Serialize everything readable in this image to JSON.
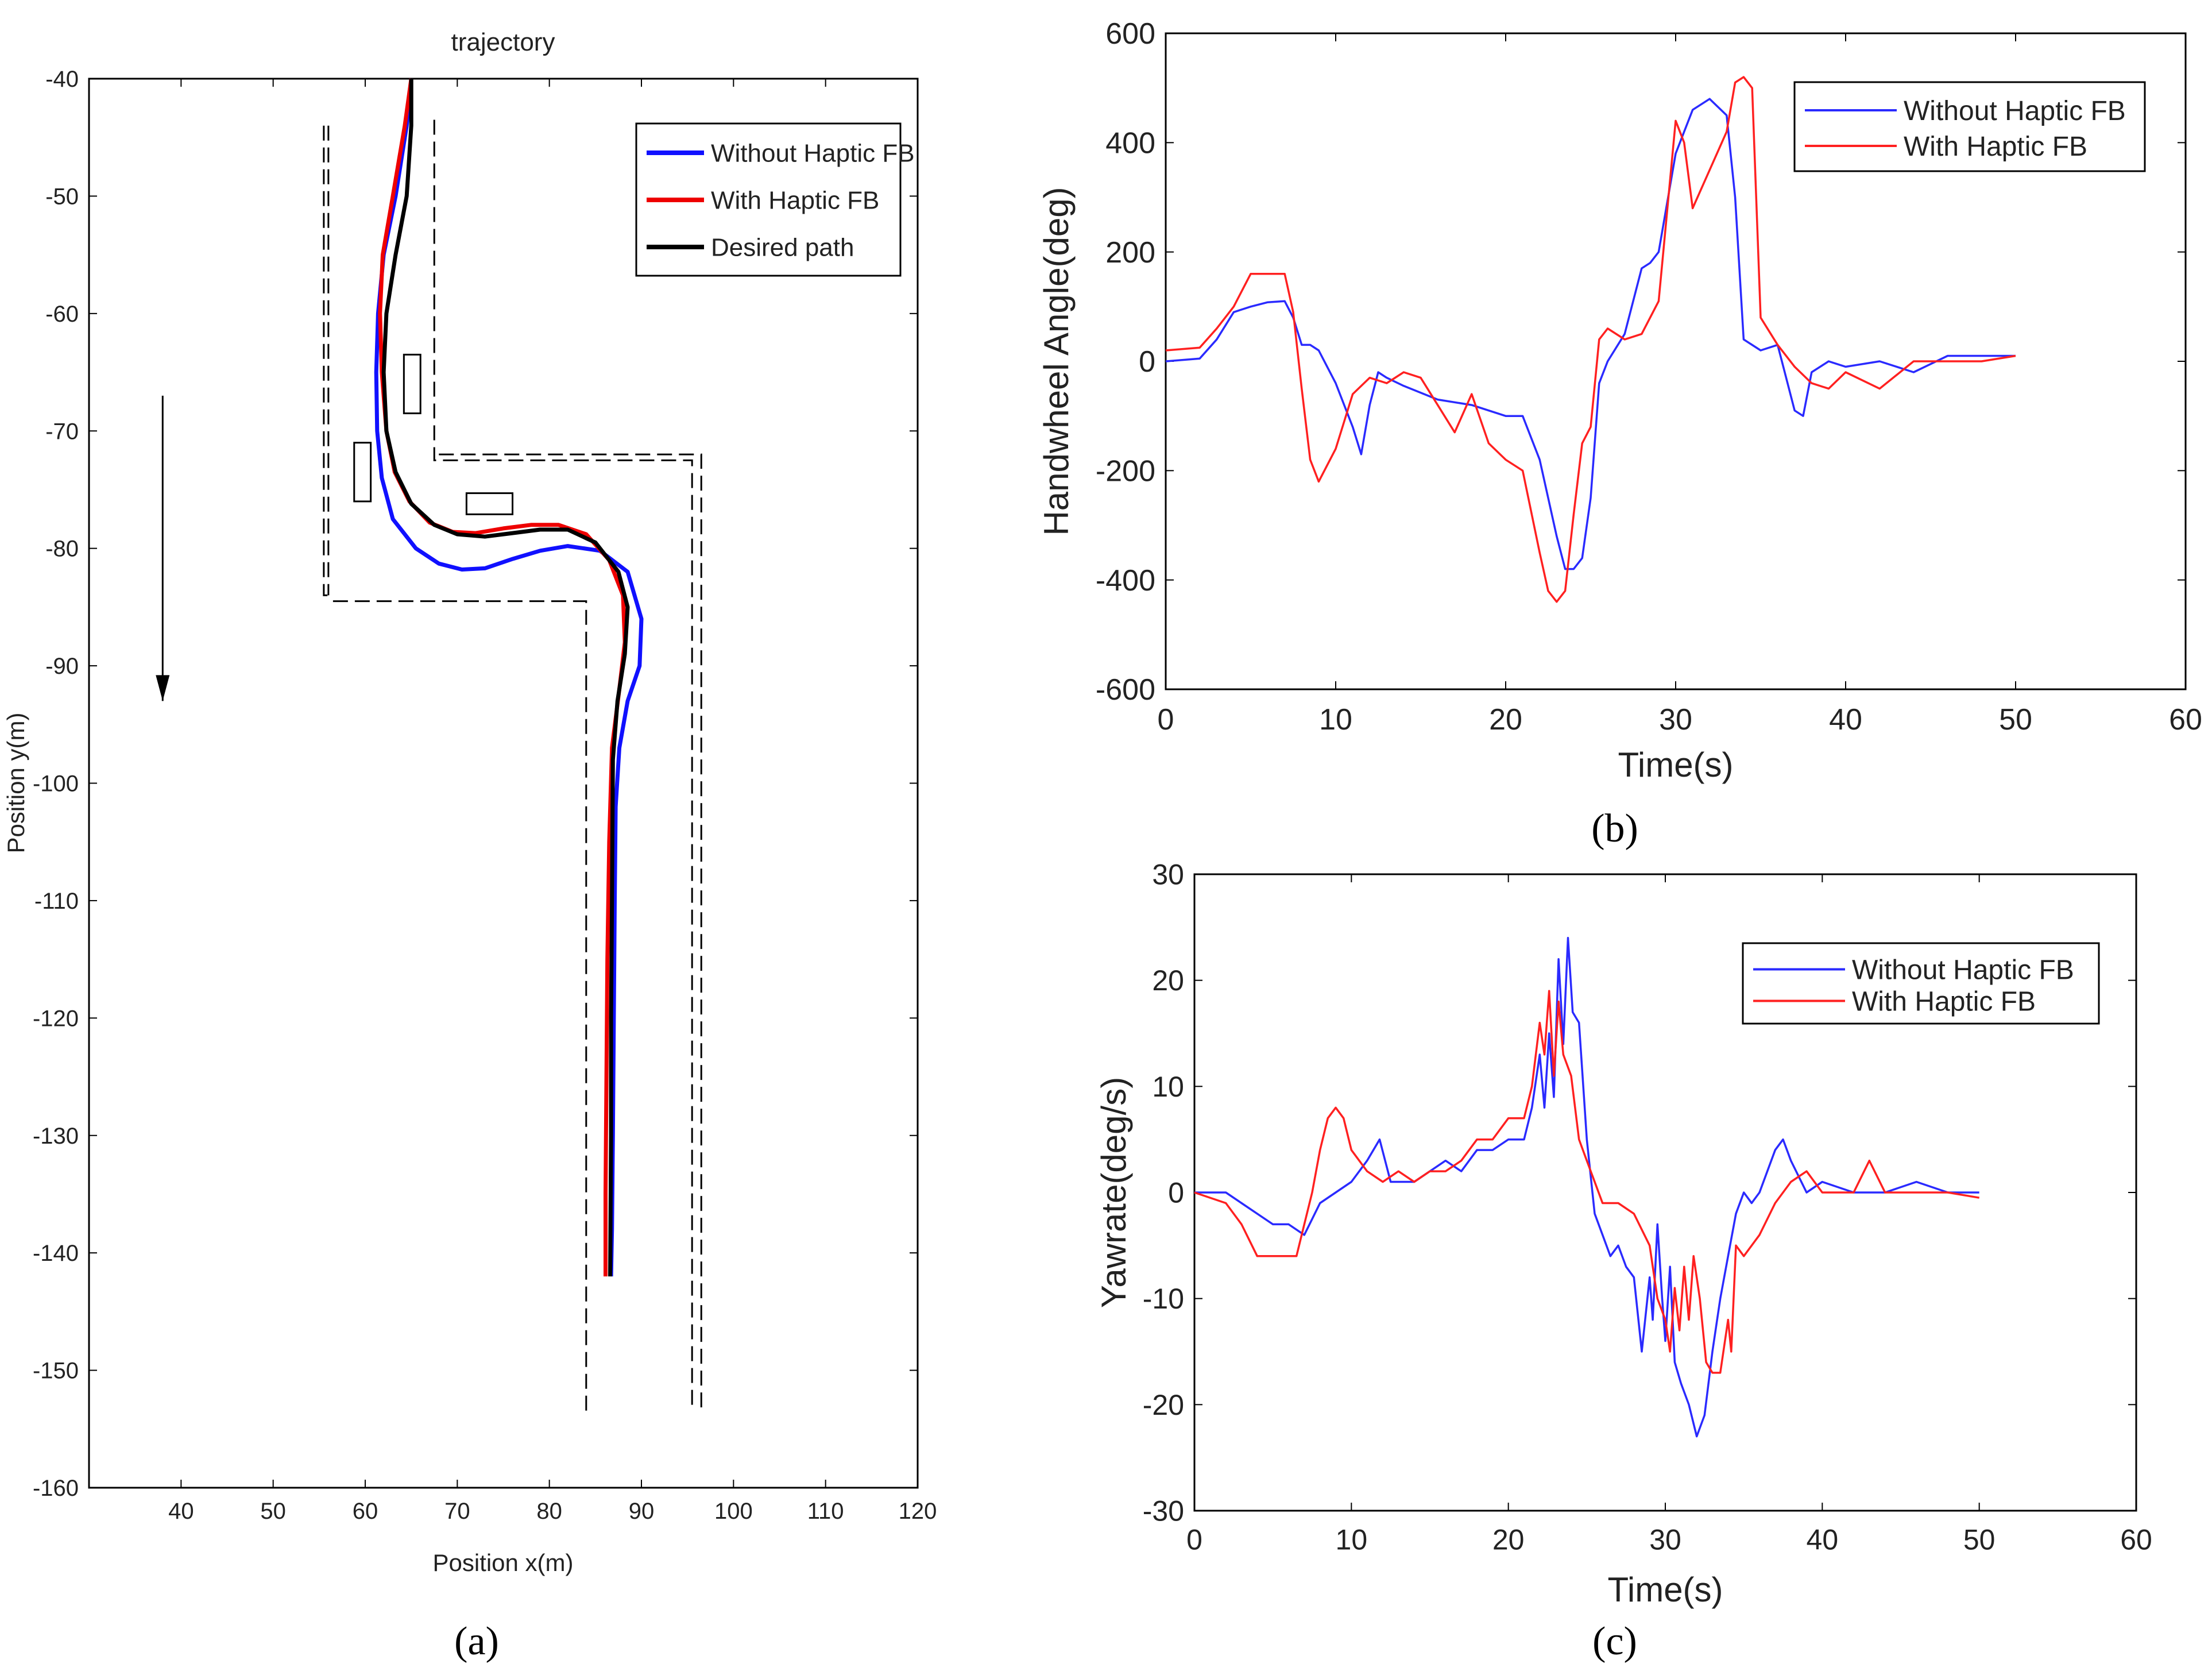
{
  "captions": {
    "a": "(a)",
    "b": "(b)",
    "c": "(c)"
  },
  "chart_data": [
    {
      "id": "a",
      "type": "line",
      "title": "trajectory",
      "xlabel": "Position x(m)",
      "ylabel": "Position y(m)",
      "xlim": [
        30,
        120
      ],
      "ylim": [
        -160,
        -40
      ],
      "xticks": [
        40,
        50,
        60,
        70,
        80,
        90,
        100,
        110,
        120
      ],
      "yticks": [
        -40,
        -50,
        -60,
        -70,
        -80,
        -90,
        -100,
        -110,
        -120,
        -130,
        -140,
        -150,
        -160
      ],
      "legend": [
        "Without Haptic FB",
        "With Haptic FB",
        "Desired path"
      ],
      "colors": {
        "without": "#1010ff",
        "with": "#ee0000",
        "desired": "#000000"
      },
      "series": [
        {
          "name": "Without Haptic FB",
          "x": [
            65.0,
            64.5,
            63.3,
            62.0,
            61.4,
            61.2,
            61.3,
            61.8,
            63.0,
            65.5,
            68.0,
            70.5,
            73.0,
            76.0,
            79.0,
            82.0,
            85.5,
            88.5,
            90.0,
            89.8,
            88.5,
            87.6,
            87.2,
            87.1,
            87.0,
            86.9,
            86.8,
            86.7
          ],
          "y": [
            -40,
            -44,
            -50,
            -55,
            -60,
            -65,
            -70,
            -74,
            -77.5,
            -80.0,
            -81.3,
            -81.8,
            -81.7,
            -80.9,
            -80.2,
            -79.8,
            -80.2,
            -82.0,
            -86.0,
            -90.0,
            -93.0,
            -97.0,
            -102,
            -110,
            -120,
            -130,
            -138,
            -142
          ]
        },
        {
          "name": "With Haptic FB",
          "x": [
            65.0,
            64.3,
            63.0,
            61.9,
            61.6,
            61.8,
            62.3,
            63.2,
            64.8,
            67.0,
            69.5,
            72.0,
            75.0,
            78.0,
            81.0,
            84.0,
            86.5,
            88.0,
            88.2,
            87.6,
            86.8,
            86.5,
            86.3,
            86.2,
            86.1,
            86.1
          ],
          "y": [
            -40,
            -44,
            -50,
            -55,
            -60,
            -65,
            -70,
            -73.5,
            -76.0,
            -77.8,
            -78.6,
            -78.7,
            -78.3,
            -78.0,
            -78.0,
            -78.8,
            -81.0,
            -84.0,
            -88.0,
            -92.0,
            -97.0,
            -105,
            -115,
            -125,
            -135,
            -142
          ]
        },
        {
          "name": "Desired path",
          "x": [
            65.0,
            65.0,
            64.5,
            63.3,
            62.3,
            62.0,
            62.3,
            63.3,
            65.0,
            67.5,
            70.0,
            73.0,
            76.0,
            79.0,
            82.0,
            85.0,
            87.5,
            88.5,
            88.2,
            87.4,
            86.9,
            86.8,
            86.7,
            86.7,
            86.6
          ],
          "y": [
            -40,
            -44,
            -50,
            -55,
            -60,
            -65,
            -70,
            -73.5,
            -76.2,
            -78.0,
            -78.8,
            -79.0,
            -78.7,
            -78.4,
            -78.4,
            -79.5,
            -82.0,
            -85.0,
            -89.0,
            -93.0,
            -98.0,
            -110,
            -120,
            -130,
            -142
          ]
        }
      ],
      "road_boundaries": [
        {
          "x": [
            55.5,
            55.5,
            56.5
          ],
          "y": [
            -44,
            -84,
            -84
          ]
        },
        {
          "x": [
            56.5,
            84.0,
            84.0
          ],
          "y": [
            -84.5,
            -84.5,
            -153.5
          ]
        },
        {
          "x": [
            67.5,
            67.5,
            95.5,
            95.5
          ],
          "y": [
            -43.5,
            -72.5,
            -72.5,
            -153.5
          ]
        },
        {
          "x": [
            68.0,
            96.5,
            96.5
          ],
          "y": [
            -72,
            -72,
            -153.5
          ]
        },
        {
          "x": [
            56.0,
            56.0
          ],
          "y": [
            -44,
            -84
          ]
        }
      ],
      "obstacles": [
        {
          "x0": 64.2,
          "x1": 66.0,
          "y0": -63.5,
          "y1": -68.5
        },
        {
          "x0": 58.8,
          "x1": 60.6,
          "y0": -71.0,
          "y1": -76.0
        },
        {
          "x0": 71.0,
          "x1": 76.0,
          "y0": -75.3,
          "y1": -77.1
        }
      ],
      "arrow": {
        "x": 38.0,
        "y_start": -67,
        "y_end": -93
      }
    },
    {
      "id": "b",
      "type": "line",
      "title": "",
      "xlabel": "Time(s)",
      "ylabel": "Handwheel Angle(deg)",
      "xlim": [
        0,
        60
      ],
      "ylim": [
        -600,
        600
      ],
      "xticks": [
        0,
        10,
        20,
        30,
        40,
        50,
        60
      ],
      "yticks": [
        600,
        400,
        200,
        0,
        -200,
        -400,
        -600
      ],
      "legend": [
        "Without Haptic FB",
        "With Haptic FB"
      ],
      "colors": {
        "without": "#2a2aff",
        "with": "#ff2020"
      },
      "series": [
        {
          "name": "Without Haptic FB",
          "x": [
            0,
            2,
            3,
            4,
            5,
            6,
            7,
            7.5,
            8,
            8.5,
            9,
            10,
            11,
            11.5,
            12,
            12.5,
            13,
            14,
            16,
            18,
            20,
            21,
            22,
            22.5,
            23,
            23.5,
            24,
            24.5,
            25,
            25.5,
            26,
            27,
            28,
            28.5,
            29,
            30,
            30.5,
            31,
            32,
            33,
            33.5,
            34,
            35,
            36,
            37,
            37.5,
            38,
            39,
            40,
            42,
            44,
            46,
            48,
            50
          ],
          "y": [
            0,
            5,
            40,
            90,
            100,
            108,
            110,
            80,
            30,
            30,
            20,
            -40,
            -120,
            -170,
            -80,
            -20,
            -30,
            -45,
            -70,
            -80,
            -100,
            -100,
            -180,
            -250,
            -320,
            -380,
            -380,
            -360,
            -250,
            -40,
            0,
            50,
            170,
            180,
            200,
            380,
            420,
            460,
            480,
            450,
            300,
            40,
            20,
            30,
            -90,
            -100,
            -20,
            0,
            -10,
            0,
            -20,
            10,
            10,
            10
          ]
        },
        {
          "name": "With Haptic FB",
          "x": [
            0,
            2,
            3,
            4,
            5,
            6,
            7,
            7.5,
            8,
            8.5,
            9,
            10,
            11,
            12,
            13,
            14,
            15,
            16,
            17,
            18,
            19,
            20,
            21,
            22,
            22.5,
            23,
            23.5,
            24,
            24.5,
            25,
            25.5,
            26,
            27,
            28,
            29,
            30,
            30.5,
            31,
            32,
            33,
            33.5,
            34,
            34.5,
            35,
            36,
            37,
            38,
            39,
            40,
            42,
            44,
            46,
            48,
            50
          ],
          "y": [
            20,
            25,
            60,
            100,
            160,
            160,
            160,
            90,
            -50,
            -180,
            -220,
            -160,
            -60,
            -30,
            -40,
            -20,
            -30,
            -80,
            -130,
            -60,
            -150,
            -180,
            -200,
            -350,
            -420,
            -440,
            -420,
            -280,
            -150,
            -120,
            40,
            60,
            40,
            50,
            110,
            440,
            400,
            280,
            350,
            420,
            510,
            520,
            500,
            80,
            30,
            -10,
            -40,
            -50,
            -20,
            -50,
            0,
            0,
            0,
            10
          ]
        }
      ]
    },
    {
      "id": "c",
      "type": "line",
      "title": "",
      "xlabel": "Time(s)",
      "ylabel": "Yawrate(deg/s)",
      "xlim": [
        0,
        60
      ],
      "ylim": [
        -30,
        30
      ],
      "xticks": [
        0,
        10,
        20,
        30,
        40,
        50,
        60
      ],
      "yticks": [
        30,
        20,
        10,
        0,
        -10,
        -20,
        -30
      ],
      "legend": [
        "Without Haptic FB",
        "With Haptic FB"
      ],
      "colors": {
        "without": "#2a2aff",
        "with": "#ff2020"
      },
      "series": [
        {
          "name": "Without Haptic FB",
          "x": [
            0,
            2,
            3,
            4,
            5,
            6,
            7,
            8,
            9,
            10,
            11,
            11.8,
            12.5,
            13,
            14,
            15,
            16,
            17,
            18,
            19,
            20,
            21,
            21.5,
            22,
            22.3,
            22.6,
            22.9,
            23.2,
            23.5,
            23.8,
            24.1,
            24.5,
            25,
            25.5,
            26,
            26.5,
            27,
            27.5,
            28,
            28.5,
            29,
            29.2,
            29.5,
            29.8,
            30,
            30.3,
            30.6,
            31,
            31.5,
            32,
            32.5,
            33,
            33.5,
            34,
            34.5,
            35,
            35.5,
            36,
            37,
            37.5,
            38,
            39,
            40,
            42,
            44,
            46,
            48,
            50
          ],
          "y": [
            0,
            0,
            -1,
            -2,
            -3,
            -3,
            -4,
            -1,
            0,
            1,
            3,
            5,
            1,
            1,
            1,
            2,
            3,
            2,
            4,
            4,
            5,
            5,
            8,
            13,
            8,
            15,
            9,
            22,
            14,
            24,
            17,
            16,
            5,
            -2,
            -4,
            -6,
            -5,
            -7,
            -8,
            -15,
            -8,
            -12,
            -3,
            -10,
            -14,
            -7,
            -16,
            -18,
            -20,
            -23,
            -21,
            -15,
            -10,
            -6,
            -2,
            0,
            -1,
            0,
            4,
            5,
            3,
            0,
            1,
            0,
            0,
            1,
            0,
            0
          ]
        },
        {
          "name": "With Haptic FB",
          "x": [
            0,
            2,
            3,
            4,
            5,
            6,
            6.5,
            7,
            7.5,
            8,
            8.5,
            9,
            9.5,
            10,
            11,
            12,
            13,
            14,
            15,
            16,
            17,
            18,
            19,
            20,
            21,
            21.5,
            22,
            22.3,
            22.6,
            22.9,
            23.2,
            23.5,
            24,
            24.5,
            25,
            25.5,
            26,
            27,
            28,
            29,
            29.5,
            30,
            30.3,
            30.6,
            30.9,
            31.2,
            31.5,
            31.8,
            32.2,
            32.6,
            33,
            33.5,
            34,
            34.2,
            34.5,
            35,
            36,
            37,
            37.5,
            38,
            39,
            40,
            41,
            42,
            43,
            44,
            46,
            48,
            50
          ],
          "y": [
            0,
            -1,
            -3,
            -6,
            -6,
            -6,
            -6,
            -3,
            0,
            4,
            7,
            8,
            7,
            4,
            2,
            1,
            2,
            1,
            2,
            2,
            3,
            5,
            5,
            7,
            7,
            10,
            16,
            13,
            19,
            11,
            18,
            13,
            11,
            5,
            3,
            1,
            -1,
            -1,
            -2,
            -5,
            -10,
            -12,
            -15,
            -9,
            -13,
            -7,
            -12,
            -6,
            -10,
            -16,
            -17,
            -17,
            -12,
            -15,
            -5,
            -6,
            -4,
            -1,
            0,
            1,
            2,
            0,
            0,
            0,
            3,
            0,
            0,
            0,
            -0.5
          ]
        }
      ]
    }
  ]
}
